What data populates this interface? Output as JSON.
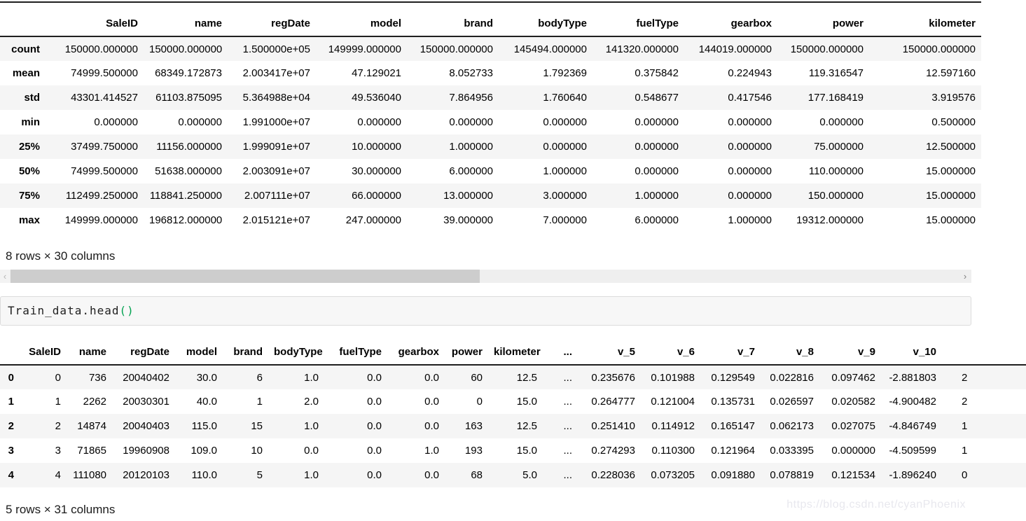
{
  "describe_table": {
    "columns": [
      "SaleID",
      "name",
      "regDate",
      "model",
      "brand",
      "bodyType",
      "fuelType",
      "gearbox",
      "power",
      "kilometer"
    ],
    "rows": [
      {
        "label": "count",
        "values": [
          "150000.000000",
          "150000.000000",
          "1.500000e+05",
          "149999.000000",
          "150000.000000",
          "145494.000000",
          "141320.000000",
          "144019.000000",
          "150000.000000",
          "150000.000000"
        ]
      },
      {
        "label": "mean",
        "values": [
          "74999.500000",
          "68349.172873",
          "2.003417e+07",
          "47.129021",
          "8.052733",
          "1.792369",
          "0.375842",
          "0.224943",
          "119.316547",
          "12.597160"
        ]
      },
      {
        "label": "std",
        "values": [
          "43301.414527",
          "61103.875095",
          "5.364988e+04",
          "49.536040",
          "7.864956",
          "1.760640",
          "0.548677",
          "0.417546",
          "177.168419",
          "3.919576"
        ]
      },
      {
        "label": "min",
        "values": [
          "0.000000",
          "0.000000",
          "1.991000e+07",
          "0.000000",
          "0.000000",
          "0.000000",
          "0.000000",
          "0.000000",
          "0.000000",
          "0.500000"
        ]
      },
      {
        "label": "25%",
        "values": [
          "37499.750000",
          "11156.000000",
          "1.999091e+07",
          "10.000000",
          "1.000000",
          "0.000000",
          "0.000000",
          "0.000000",
          "75.000000",
          "12.500000"
        ]
      },
      {
        "label": "50%",
        "values": [
          "74999.500000",
          "51638.000000",
          "2.003091e+07",
          "30.000000",
          "6.000000",
          "1.000000",
          "0.000000",
          "0.000000",
          "110.000000",
          "15.000000"
        ]
      },
      {
        "label": "75%",
        "values": [
          "112499.250000",
          "118841.250000",
          "2.007111e+07",
          "66.000000",
          "13.000000",
          "3.000000",
          "1.000000",
          "0.000000",
          "150.000000",
          "15.000000"
        ]
      },
      {
        "label": "max",
        "values": [
          "149999.000000",
          "196812.000000",
          "2.015121e+07",
          "247.000000",
          "39.000000",
          "7.000000",
          "6.000000",
          "1.000000",
          "19312.000000",
          "15.000000"
        ]
      }
    ],
    "summary": "8 rows × 30 columns"
  },
  "scrollbar": {
    "left_arrow": "‹",
    "right_arrow": "›"
  },
  "code_cell": {
    "code": "Train_data.head",
    "parens": "()"
  },
  "head_table": {
    "columns": [
      "SaleID",
      "name",
      "regDate",
      "model",
      "brand",
      "bodyType",
      "fuelType",
      "gearbox",
      "power",
      "kilometer",
      "...",
      "v_5",
      "v_6",
      "v_7",
      "v_8",
      "v_9",
      "v_10",
      ""
    ],
    "rows": [
      {
        "label": "0",
        "values": [
          "0",
          "736",
          "20040402",
          "30.0",
          "6",
          "1.0",
          "0.0",
          "0.0",
          "60",
          "12.5",
          "...",
          "0.235676",
          "0.101988",
          "0.129549",
          "0.022816",
          "0.097462",
          "-2.881803",
          "2"
        ]
      },
      {
        "label": "1",
        "values": [
          "1",
          "2262",
          "20030301",
          "40.0",
          "1",
          "2.0",
          "0.0",
          "0.0",
          "0",
          "15.0",
          "...",
          "0.264777",
          "0.121004",
          "0.135731",
          "0.026597",
          "0.020582",
          "-4.900482",
          "2"
        ]
      },
      {
        "label": "2",
        "values": [
          "2",
          "14874",
          "20040403",
          "115.0",
          "15",
          "1.0",
          "0.0",
          "0.0",
          "163",
          "12.5",
          "...",
          "0.251410",
          "0.114912",
          "0.165147",
          "0.062173",
          "0.027075",
          "-4.846749",
          "1"
        ]
      },
      {
        "label": "3",
        "values": [
          "3",
          "71865",
          "19960908",
          "109.0",
          "10",
          "0.0",
          "0.0",
          "1.0",
          "193",
          "15.0",
          "...",
          "0.274293",
          "0.110300",
          "0.121964",
          "0.033395",
          "0.000000",
          "-4.509599",
          "1"
        ]
      },
      {
        "label": "4",
        "values": [
          "4",
          "111080",
          "20120103",
          "110.0",
          "5",
          "1.0",
          "0.0",
          "0.0",
          "68",
          "5.0",
          "...",
          "0.228036",
          "0.073205",
          "0.091880",
          "0.078819",
          "0.121534",
          "-1.896240",
          "0"
        ]
      }
    ],
    "summary": "5 rows × 31 columns"
  },
  "watermark": "https://blog.csdn.net/cyanPhoenix",
  "colors": {
    "header_border": "#1f1f1f",
    "row_stripe": "#f5f5f5",
    "scrollbar_track": "#efefef",
    "scrollbar_thumb": "#cdcdcd",
    "code_cell_bg": "#f7f7f7",
    "code_cell_border": "#dcdcdc",
    "code_paren_green": "#00a250",
    "watermark_gray": "#e8e8ee"
  }
}
